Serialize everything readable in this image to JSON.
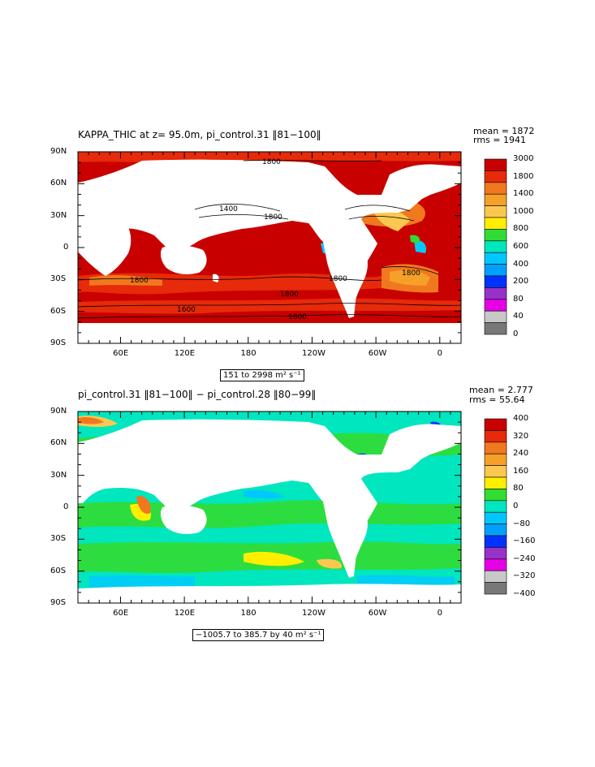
{
  "panels": [
    {
      "id": "top",
      "title": "KAPPA_THIC at z=  95.0m, pi_control.31 ‖81−100‖",
      "mean_label": "mean = 1872",
      "rms_label": "rms = 1941",
      "range_label": "151 to 2998 m² s⁻¹",
      "colorbar": {
        "labels": [
          "3000",
          "1800",
          "1400",
          "1000",
          "800",
          "600",
          "400",
          "200",
          "80",
          "40",
          "0"
        ],
        "colors": [
          "#c80000",
          "#e62a0a",
          "#f0781e",
          "#f5a028",
          "#fac850",
          "#ffee00",
          "#32dc32",
          "#00e6be",
          "#00c8ff",
          "#00a0ff",
          "#0032ff",
          "#9632c8",
          "#e600e6",
          "#c8c8c8",
          "#787878"
        ]
      },
      "contour_labels": [
        "1800",
        "1400",
        "1800",
        "1800",
        "1800",
        "1800",
        "1800",
        "1800",
        "1600"
      ]
    },
    {
      "id": "bottom",
      "title": "pi_control.31 ‖81−100‖ − pi_control.28 ‖80−99‖",
      "mean_label": "mean = 2.777",
      "rms_label": "rms = 55.64",
      "range_label": "−1005.7 to 385.7 by 40 m² s⁻¹",
      "colorbar": {
        "labels": [
          "400",
          "320",
          "240",
          "160",
          "80",
          "0",
          "−80",
          "−160",
          "−240",
          "−320",
          "−400"
        ],
        "colors": [
          "#c80000",
          "#e62a0a",
          "#f0781e",
          "#f5a028",
          "#fac850",
          "#ffee00",
          "#32dc32",
          "#00e6be",
          "#00c8ff",
          "#00a0ff",
          "#0032ff",
          "#9632c8",
          "#e600e6",
          "#c8c8c8",
          "#787878"
        ]
      }
    }
  ],
  "axes": {
    "lat_ticks": [
      "90N",
      "60N",
      "30N",
      "0",
      "30S",
      "60S",
      "90S"
    ],
    "lon_ticks": [
      "60E",
      "120E",
      "180",
      "120W",
      "60W",
      "0"
    ]
  },
  "chart_data": [
    {
      "type": "heatmap",
      "title": "KAPPA_THIC at z=  95.0m, pi_control.31 ‖81−100‖",
      "projection": "lat-lon",
      "xlim": [
        "20E",
        "20E"
      ],
      "ylim": [
        "90S",
        "90N"
      ],
      "x_ticks": [
        "60E",
        "120E",
        "180",
        "120W",
        "60W",
        "0"
      ],
      "y_ticks": [
        "90N",
        "60N",
        "30N",
        "0",
        "30S",
        "60S",
        "90S"
      ],
      "value_range": [
        151,
        2998
      ],
      "units": "m² s⁻¹",
      "mean": 1872,
      "rms": 1941,
      "colorbar_levels": [
        0,
        40,
        80,
        200,
        400,
        600,
        800,
        1000,
        1400,
        1800,
        3000
      ]
    },
    {
      "type": "heatmap",
      "title": "pi_control.31 ‖81−100‖ − pi_control.28 ‖80−99‖",
      "projection": "lat-lon",
      "xlim": [
        "20E",
        "20E"
      ],
      "ylim": [
        "90S",
        "90N"
      ],
      "x_ticks": [
        "60E",
        "120E",
        "180",
        "120W",
        "60W",
        "0"
      ],
      "y_ticks": [
        "90N",
        "60N",
        "30N",
        "0",
        "30S",
        "60S",
        "90S"
      ],
      "value_range": [
        -1005.7,
        385.7
      ],
      "contour_interval": 40,
      "units": "m² s⁻¹",
      "mean": 2.777,
      "rms": 55.64,
      "colorbar_levels": [
        -400,
        -320,
        -240,
        -160,
        -80,
        0,
        80,
        160,
        240,
        320,
        400
      ]
    }
  ]
}
